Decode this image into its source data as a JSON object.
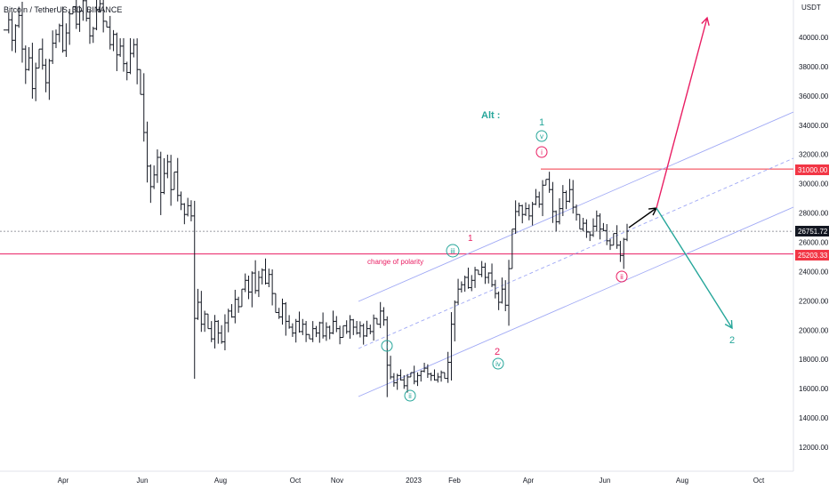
{
  "chart_data": {
    "type": "ohlc",
    "title": "Bitcoin / TetherUS, 3D, BINANCE",
    "currency": "USDT",
    "x_axis": {
      "ticks": [
        "Apr",
        "Jun",
        "Aug",
        "Oct",
        "Nov",
        "2023",
        "Feb",
        "Apr",
        "Jun",
        "Aug",
        "Oct"
      ]
    },
    "y_axis": {
      "ylim": [
        11000,
        43000
      ],
      "ticks": [
        "12000.00",
        "14000.00",
        "16000.00",
        "18000.00",
        "20000.00",
        "22000.00",
        "24000.00",
        "26000.00",
        "28000.00",
        "30000.00",
        "32000.00",
        "34000.00",
        "36000.00",
        "38000.00",
        "40000.00"
      ]
    },
    "price_labels": {
      "resistance": "31000.00",
      "current": "26751.72",
      "polarity": "25203.33"
    },
    "levels": {
      "resistance": 31000,
      "current": 26751.72,
      "polarity": 25203.33
    },
    "annotations": {
      "polarity_text": "change of polarity",
      "alt_label": "Alt :",
      "wave_labels": {
        "i_green": "i",
        "ii_green": "ii",
        "iii_green": "iii",
        "iv_green": "iv",
        "v_green": "v",
        "one_red": "1",
        "two_red": "2",
        "one_green_top": "1",
        "i_red": "i",
        "ii_red": "ii",
        "two_green": "2"
      }
    },
    "ohlc_closes": [
      40500,
      41200,
      39800,
      40800,
      41500,
      39200,
      37800,
      38600,
      36500,
      37900,
      39200,
      38100,
      36900,
      38400,
      39600,
      40200,
      40800,
      39100,
      40300,
      41600,
      42100,
      40900,
      41800,
      42500,
      41300,
      40100,
      40600,
      41900,
      42300,
      41100,
      40700,
      39500,
      40200,
      38800,
      39400,
      38200,
      37600,
      38900,
      39500,
      37800,
      36100,
      33500,
      31200,
      29800,
      30600,
      31800,
      29400,
      30700,
      31500,
      29600,
      30800,
      29200,
      28600,
      27900,
      28500,
      27800,
      20800,
      21900,
      20400,
      21100,
      20100,
      19400,
      20600,
      19800,
      19200,
      20500,
      21300,
      20900,
      22100,
      21600,
      22800,
      23400,
      22600,
      23900,
      22700,
      23600,
      24100,
      23200,
      23800,
      22500,
      21200,
      20900,
      21800,
      20600,
      20200,
      19800,
      20600,
      19900,
      20400,
      19700,
      19400,
      20100,
      19800,
      20500,
      19600,
      20200,
      19800,
      20600,
      20100,
      19500,
      20300,
      19900,
      20700,
      20200,
      19800,
      20300,
      19600,
      20100,
      19900,
      20800,
      20400,
      21300,
      20700,
      17600,
      16800,
      16400,
      16900,
      16600,
      16200,
      16800,
      17100,
      16500,
      16900,
      17200,
      17400,
      17000,
      16900,
      16600,
      16800,
      17100,
      16700,
      17800,
      20400,
      21900,
      22800,
      23100,
      23600,
      22900,
      23400,
      24100,
      23800,
      24300,
      23600,
      23900,
      23100,
      22500,
      21900,
      22800,
      21700,
      24200,
      26900,
      28100,
      28500,
      27900,
      28300,
      27800,
      28600,
      29100,
      28600,
      29900,
      30300,
      29600,
      28100,
      27400,
      28300,
      29400,
      28800,
      29600,
      28400,
      27900,
      26900,
      27300,
      26700,
      26500,
      27100,
      27800,
      26900,
      26800,
      26100,
      25800,
      26600,
      25800,
      25100,
      26200,
      26752
    ]
  }
}
